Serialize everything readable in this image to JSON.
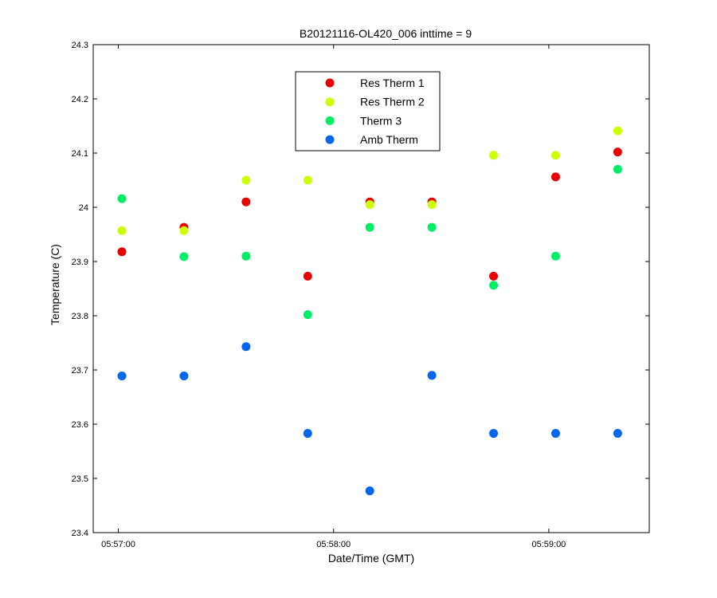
{
  "chart_data": {
    "type": "scatter",
    "title": "B20121116-OL420_006 inttime = 9",
    "xlabel": "Date/Time (GMT)",
    "ylabel": "Temperature (C)",
    "xlim": [
      -7,
      148
    ],
    "ylim": [
      23.4,
      24.3
    ],
    "x_ticks": [
      {
        "value": 0,
        "label": "05:57:00"
      },
      {
        "value": 60,
        "label": "05:58:00"
      },
      {
        "value": 120,
        "label": "05:59:00"
      }
    ],
    "y_ticks": [
      {
        "value": 23.4,
        "label": "23.4"
      },
      {
        "value": 23.5,
        "label": "23.5"
      },
      {
        "value": 23.6,
        "label": "23.6"
      },
      {
        "value": 23.7,
        "label": "23.7"
      },
      {
        "value": 23.8,
        "label": "23.8"
      },
      {
        "value": 23.9,
        "label": "23.9"
      },
      {
        "value": 24.0,
        "label": "24"
      },
      {
        "value": 24.1,
        "label": "24.1"
      },
      {
        "value": 24.2,
        "label": "24.2"
      },
      {
        "value": 24.3,
        "label": "24.3"
      }
    ],
    "x": [
      1,
      18.3,
      35.6,
      52.8,
      70.1,
      87.4,
      104.6,
      121.9,
      139.2
    ],
    "series": [
      {
        "name": "Res Therm 1",
        "color": "#e60000",
        "values": [
          23.918,
          23.963,
          24.01,
          23.873,
          24.01,
          24.01,
          23.873,
          24.056,
          24.102
        ]
      },
      {
        "name": "Res Therm 2",
        "color": "#ccff00",
        "values": [
          23.957,
          23.957,
          24.05,
          24.05,
          24.005,
          24.005,
          24.096,
          24.096,
          24.141
        ]
      },
      {
        "name": "Therm 3",
        "color": "#00ee66",
        "values": [
          24.016,
          23.909,
          23.91,
          23.802,
          23.963,
          23.963,
          23.856,
          23.91,
          24.07
        ]
      },
      {
        "name": "Amb Therm",
        "color": "#0066ee",
        "values": [
          23.689,
          23.689,
          23.743,
          23.583,
          23.477,
          23.69,
          23.583,
          23.583,
          23.583
        ]
      }
    ],
    "grid": false,
    "legend_position": "top-center"
  }
}
